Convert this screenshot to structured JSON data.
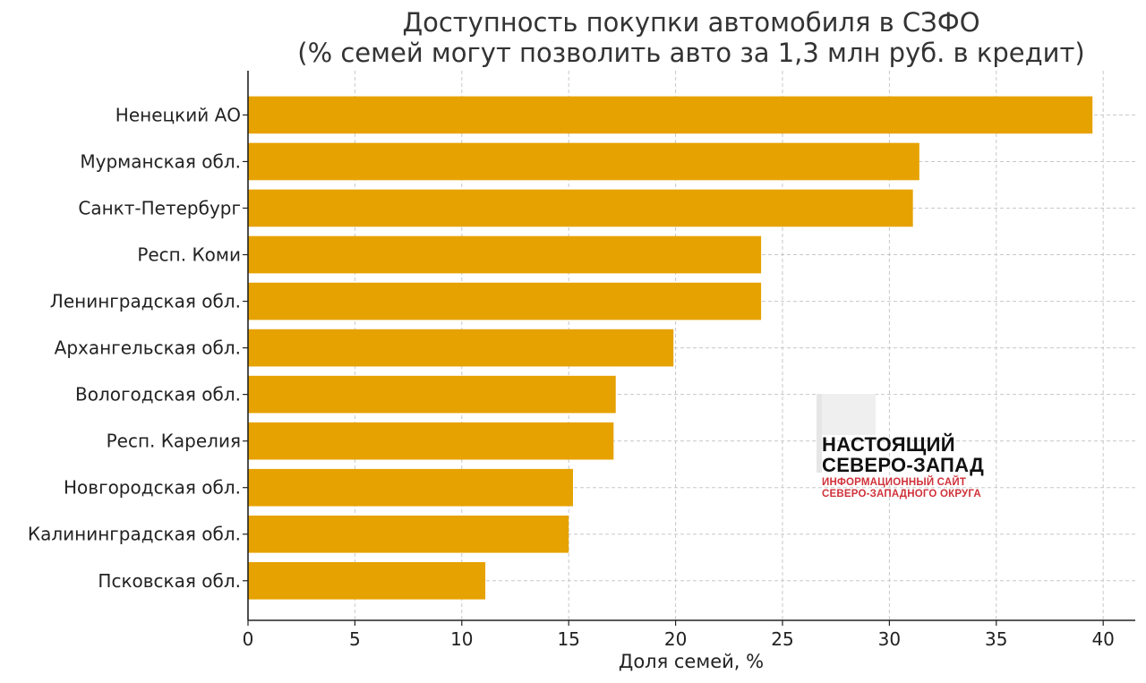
{
  "chart_data": {
    "type": "bar",
    "orientation": "horizontal",
    "title": "Доступность покупки автомобиля в СЗФО",
    "subtitle": "(% семей могут позволить авто за 1,3 млн руб. в кредит)",
    "xlabel": "Доля семей, %",
    "ylabel": "",
    "xlim": [
      0,
      41.5
    ],
    "xticks": [
      0,
      5,
      10,
      15,
      20,
      25,
      30,
      35,
      40
    ],
    "grid": true,
    "bar_color": "#e6a200",
    "categories": [
      "Ненецкий АО",
      "Мурманская обл.",
      "Санкт-Петербург",
      "Респ. Коми",
      "Ленинградская обл.",
      "Архангельская обл.",
      "Вологодская обл.",
      "Респ. Карелия",
      "Новгородская обл.",
      "Калининградская обл.",
      "Псковская обл."
    ],
    "values": [
      39.5,
      31.4,
      31.1,
      24.0,
      24.0,
      19.9,
      17.2,
      17.1,
      15.2,
      15.0,
      11.1
    ]
  },
  "watermark": {
    "line1": "НАСТОЯЩИЙ",
    "line2": "СЕВЕРО-ЗАПАД",
    "line3": "ИНФОРМАЦИОННЫЙ САЙТ",
    "line4": "СЕВЕРО-ЗАПАДНОГО ОКРУГА",
    "text_color": "#111111",
    "accent_color": "#d0323a"
  }
}
